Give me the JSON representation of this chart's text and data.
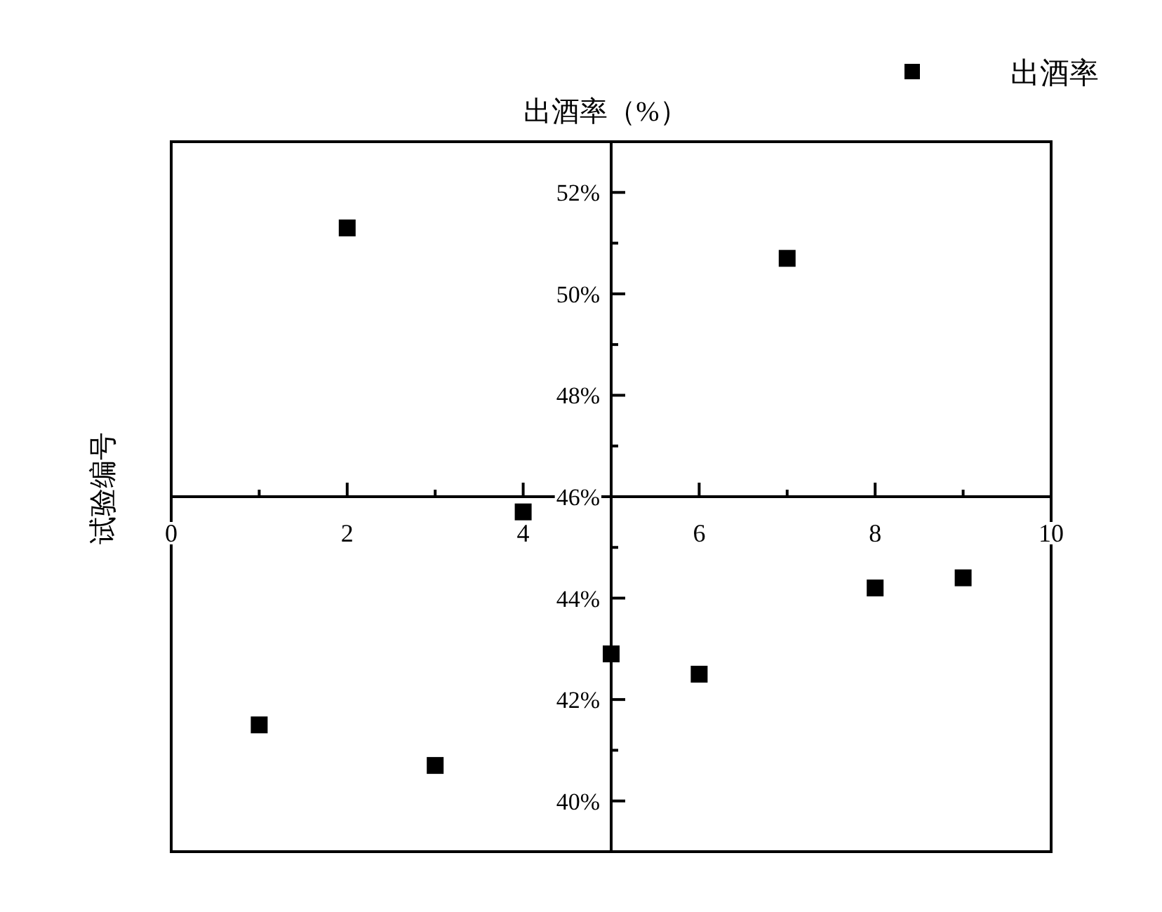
{
  "chart_data": {
    "type": "scatter",
    "title": "出酒率（%）",
    "ylabel": "试验编号",
    "x": [
      1,
      2,
      3,
      4,
      5,
      6,
      7,
      8,
      9
    ],
    "series": [
      {
        "name": "出酒率",
        "color": "#000000",
        "values": [
          41.5,
          51.3,
          40.7,
          45.7,
          42.9,
          42.5,
          50.7,
          44.2,
          44.4
        ]
      }
    ],
    "xlim": [
      0,
      10
    ],
    "xticks": [
      0,
      2,
      4,
      6,
      8,
      10
    ],
    "ylim": [
      39,
      53
    ],
    "yticks": [
      {
        "value": 40,
        "label": "40%"
      },
      {
        "value": 42,
        "label": "42%"
      },
      {
        "value": 44,
        "label": "44%"
      },
      {
        "value": 46,
        "label": "46%"
      },
      {
        "value": 48,
        "label": "48%"
      },
      {
        "value": 50,
        "label": "50%"
      },
      {
        "value": 52,
        "label": "52%"
      }
    ],
    "marker": "square",
    "grid": false,
    "legend": "top right"
  }
}
